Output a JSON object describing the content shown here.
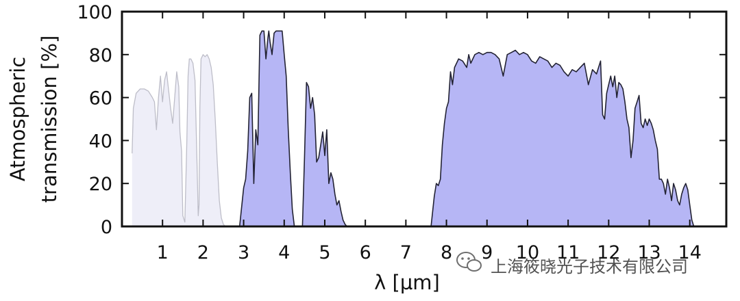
{
  "chart_data": {
    "type": "area",
    "xlabel": "λ [µm]",
    "ylabel_line1": "Atmospheric",
    "ylabel_line2": "transmission [%]",
    "xlim": [
      0,
      14.9
    ],
    "ylim": [
      0,
      100
    ],
    "x_ticks": [
      1,
      2,
      3,
      4,
      5,
      6,
      7,
      8,
      9,
      10,
      11,
      12,
      13,
      14
    ],
    "y_ticks": [
      0,
      20,
      40,
      60,
      80,
      100
    ],
    "grid": false,
    "legend": "none",
    "series": [
      {
        "style": "faded",
        "color": "#eeeef8",
        "stroke": "#bdbdc8",
        "x": [
          0.25,
          0.28,
          0.35,
          0.45,
          0.55,
          0.65,
          0.75,
          0.8,
          0.85,
          0.9,
          0.95,
          1.0,
          1.05,
          1.1,
          1.2,
          1.25,
          1.35,
          1.4,
          1.43,
          1.47,
          1.5,
          1.55,
          1.6,
          1.63,
          1.66,
          1.7,
          1.75,
          1.8,
          1.85,
          1.88,
          1.9,
          1.92,
          1.95,
          2.0,
          2.05,
          2.1,
          2.15,
          2.2,
          2.25,
          2.3,
          2.35,
          2.4,
          2.45,
          2.5,
          2.55
        ],
        "y": [
          34,
          55,
          62,
          64,
          64,
          63,
          60,
          58,
          45,
          60,
          70,
          58,
          68,
          72,
          55,
          48,
          72,
          65,
          44,
          35,
          5,
          2,
          40,
          70,
          78,
          78,
          76,
          68,
          30,
          5,
          10,
          55,
          78,
          80,
          79,
          80,
          78,
          74,
          66,
          50,
          30,
          12,
          4,
          1,
          0
        ]
      },
      {
        "style": "main",
        "color": "#b6b6f5",
        "stroke": "#222233",
        "x": [
          2.9,
          3.0,
          3.05,
          3.1,
          3.15,
          3.2,
          3.25,
          3.3,
          3.35,
          3.4,
          3.45,
          3.5,
          3.55,
          3.6,
          3.62,
          3.65,
          3.7,
          3.75,
          3.8,
          3.85,
          3.9,
          3.95,
          4.0,
          4.05,
          4.1,
          4.15,
          4.2,
          4.25
        ],
        "y": [
          0,
          18,
          22,
          35,
          60,
          62,
          20,
          45,
          38,
          89,
          91,
          91,
          78,
          88,
          91,
          86,
          80,
          90,
          91,
          91,
          91,
          91,
          80,
          70,
          45,
          25,
          8,
          0
        ]
      },
      {
        "style": "main",
        "color": "#b6b6f5",
        "stroke": "#222233",
        "x": [
          4.45,
          4.5,
          4.55,
          4.6,
          4.65,
          4.7,
          4.75,
          4.8,
          4.85,
          4.9,
          4.95,
          5.0,
          5.05,
          5.1,
          5.15,
          5.2,
          5.25,
          5.3,
          5.35,
          5.4,
          5.45,
          5.5,
          5.55
        ],
        "y": [
          0,
          32,
          67,
          65,
          55,
          60,
          52,
          30,
          32,
          38,
          44,
          33,
          45,
          20,
          25,
          22,
          15,
          10,
          12,
          7,
          3,
          1,
          0
        ]
      },
      {
        "style": "main",
        "color": "#b6b6f5",
        "stroke": "#222233",
        "x": [
          7.62,
          7.7,
          7.75,
          7.8,
          7.85,
          7.9,
          7.95,
          8.0,
          8.05,
          8.1,
          8.15,
          8.2,
          8.3,
          8.4,
          8.5,
          8.55,
          8.6,
          8.7,
          8.8,
          8.9,
          9.0,
          9.1,
          9.2,
          9.3,
          9.4,
          9.5,
          9.6,
          9.7,
          9.8,
          9.9,
          10.0,
          10.1,
          10.2,
          10.3,
          10.4,
          10.5,
          10.6,
          10.7,
          10.8,
          10.9,
          11.0,
          11.1,
          11.2,
          11.3,
          11.4,
          11.5,
          11.6,
          11.7,
          11.8,
          11.85,
          11.9,
          11.95,
          12.0,
          12.05,
          12.1,
          12.15,
          12.2,
          12.25,
          12.3,
          12.35,
          12.4,
          12.45,
          12.5,
          12.55,
          12.6,
          12.65,
          12.7,
          12.75,
          12.8,
          12.85,
          12.9,
          12.95,
          13.0,
          13.05,
          13.1,
          13.15,
          13.2,
          13.25,
          13.3,
          13.35,
          13.4,
          13.45,
          13.5,
          13.55,
          13.6,
          13.65,
          13.7,
          13.75,
          13.8,
          13.85,
          13.9,
          13.95,
          14.0,
          14.05,
          14.1
        ],
        "y": [
          0,
          14,
          20,
          19,
          22,
          38,
          48,
          55,
          58,
          72,
          66,
          74,
          78,
          77,
          74,
          80,
          76,
          80,
          81,
          80,
          81,
          81,
          80,
          78,
          70,
          80,
          81,
          82,
          80,
          81,
          80,
          77,
          76,
          79,
          78,
          77,
          74,
          76,
          75,
          72,
          70,
          73,
          72,
          74,
          76,
          66,
          73,
          71,
          77,
          52,
          50,
          62,
          66,
          70,
          65,
          70,
          60,
          67,
          66,
          64,
          58,
          50,
          46,
          32,
          40,
          55,
          58,
          61,
          48,
          46,
          50,
          47,
          50,
          48,
          45,
          40,
          36,
          22,
          22,
          20,
          15,
          22,
          18,
          12,
          20,
          17,
          12,
          10,
          15,
          18,
          20,
          17,
          10,
          3,
          0
        ]
      }
    ]
  },
  "watermark": {
    "icon": "wechat-icon",
    "text": "上海筱晓光子技术有限公司"
  }
}
